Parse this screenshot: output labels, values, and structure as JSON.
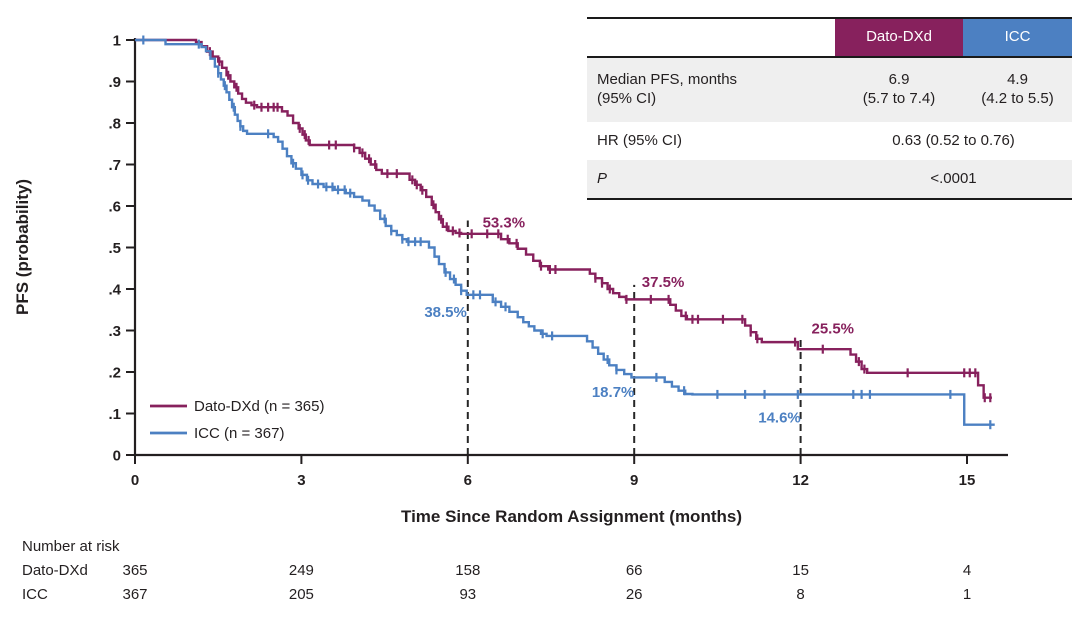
{
  "figure_title": "",
  "chart_data": {
    "type": "line",
    "subtype": "kaplan-meier-step",
    "title": "",
    "xlabel": "Time Since Random Assignment (months)",
    "ylabel": "PFS (probability)",
    "xlim": [
      0,
      15.6
    ],
    "ylim": [
      0,
      1
    ],
    "grid": false,
    "legend_position": "inside-lower-left",
    "xticks": {
      "values": [
        0,
        3,
        6,
        9,
        12,
        15
      ],
      "labels": [
        "0",
        "3",
        "6",
        "9",
        "12",
        "15"
      ]
    },
    "yticks": {
      "values": [
        1,
        0.9,
        0.8,
        0.7,
        0.6,
        0.5,
        0.4,
        0.3,
        0.2,
        0.1,
        0
      ],
      "labels": [
        "1",
        ".9",
        ".8",
        ".7",
        ".6",
        ".5",
        ".4",
        ".3",
        ".2",
        ".1",
        "0"
      ]
    },
    "milestone_dashed_lines": [
      {
        "t": 6,
        "top_p": 0.565
      },
      {
        "t": 9,
        "top_p": 0.41
      },
      {
        "t": 12,
        "top_p": 0.287
      }
    ],
    "annotations": [
      {
        "label": "53.3%",
        "t": 6.65,
        "p": 0.56,
        "series": "dato"
      },
      {
        "label": "38.5%",
        "t": 5.6,
        "p": 0.345,
        "series": "icc"
      },
      {
        "label": "37.5%",
        "t": 9.52,
        "p": 0.417,
        "series": "dato"
      },
      {
        "label": "18.7%",
        "t": 8.62,
        "p": 0.152,
        "series": "icc"
      },
      {
        "label": "25.5%",
        "t": 12.58,
        "p": 0.305,
        "series": "dato"
      },
      {
        "label": "14.6%",
        "t": 11.62,
        "p": 0.09,
        "series": "icc"
      }
    ],
    "series": [
      {
        "id": "dato",
        "name": "Dato-DXd (n = 365)",
        "color": "#87215D",
        "end_t": 15.45,
        "steps": [
          [
            0,
            1.0
          ],
          [
            1.1,
            0.995
          ],
          [
            1.2,
            0.985
          ],
          [
            1.3,
            0.972
          ],
          [
            1.4,
            0.96
          ],
          [
            1.5,
            0.948
          ],
          [
            1.57,
            0.933
          ],
          [
            1.65,
            0.915
          ],
          [
            1.72,
            0.9
          ],
          [
            1.79,
            0.886
          ],
          [
            1.86,
            0.871
          ],
          [
            1.93,
            0.858
          ],
          [
            2.0,
            0.849
          ],
          [
            2.1,
            0.843
          ],
          [
            2.2,
            0.838
          ],
          [
            2.65,
            0.828
          ],
          [
            2.75,
            0.818
          ],
          [
            2.85,
            0.8
          ],
          [
            2.95,
            0.787
          ],
          [
            3.02,
            0.772
          ],
          [
            3.08,
            0.758
          ],
          [
            3.15,
            0.747
          ],
          [
            3.95,
            0.74
          ],
          [
            4.05,
            0.728
          ],
          [
            4.15,
            0.714
          ],
          [
            4.25,
            0.7
          ],
          [
            4.35,
            0.687
          ],
          [
            4.45,
            0.678
          ],
          [
            4.95,
            0.663
          ],
          [
            5.05,
            0.651
          ],
          [
            5.15,
            0.638
          ],
          [
            5.25,
            0.622
          ],
          [
            5.35,
            0.603
          ],
          [
            5.42,
            0.585
          ],
          [
            5.48,
            0.568
          ],
          [
            5.55,
            0.55
          ],
          [
            5.65,
            0.54
          ],
          [
            5.78,
            0.535
          ],
          [
            5.88,
            0.533
          ],
          [
            6.6,
            0.52
          ],
          [
            6.75,
            0.51
          ],
          [
            6.9,
            0.497
          ],
          [
            7.05,
            0.483
          ],
          [
            7.18,
            0.468
          ],
          [
            7.3,
            0.455
          ],
          [
            7.45,
            0.447
          ],
          [
            8.2,
            0.437
          ],
          [
            8.3,
            0.426
          ],
          [
            8.42,
            0.414
          ],
          [
            8.52,
            0.4
          ],
          [
            8.62,
            0.39
          ],
          [
            8.73,
            0.381
          ],
          [
            8.85,
            0.375
          ],
          [
            9.65,
            0.362
          ],
          [
            9.75,
            0.348
          ],
          [
            9.85,
            0.335
          ],
          [
            9.95,
            0.327
          ],
          [
            11.0,
            0.312
          ],
          [
            11.1,
            0.296
          ],
          [
            11.2,
            0.28
          ],
          [
            11.3,
            0.272
          ],
          [
            11.95,
            0.255
          ],
          [
            12.9,
            0.242
          ],
          [
            13.0,
            0.225
          ],
          [
            13.1,
            0.207
          ],
          [
            13.2,
            0.198
          ],
          [
            15.2,
            0.168
          ],
          [
            15.3,
            0.138
          ]
        ],
        "censor_times": [
          1.35,
          1.52,
          1.68,
          1.83,
          2.15,
          2.28,
          2.4,
          2.5,
          2.57,
          2.97,
          3.06,
          3.13,
          3.5,
          3.62,
          3.95,
          4.1,
          4.22,
          4.33,
          4.55,
          4.72,
          5.0,
          5.08,
          5.18,
          5.38,
          5.52,
          5.62,
          5.73,
          5.85,
          6.07,
          6.35,
          6.55,
          6.72,
          6.88,
          7.32,
          7.48,
          7.58,
          8.3,
          8.42,
          8.56,
          8.86,
          9.3,
          9.62,
          9.93,
          10.05,
          10.15,
          10.6,
          10.95,
          11.1,
          11.22,
          11.9,
          12.4,
          13.05,
          13.15,
          13.93,
          14.95,
          15.05,
          15.15,
          15.32,
          15.42
        ]
      },
      {
        "id": "icc",
        "name": "ICC (n = 367)",
        "color": "#4C80C2",
        "end_t": 15.5,
        "steps": [
          [
            0,
            1.0
          ],
          [
            0.55,
            0.99
          ],
          [
            1.2,
            0.983
          ],
          [
            1.28,
            0.973
          ],
          [
            1.36,
            0.955
          ],
          [
            1.44,
            0.936
          ],
          [
            1.5,
            0.92
          ],
          [
            1.55,
            0.905
          ],
          [
            1.6,
            0.89
          ],
          [
            1.65,
            0.874
          ],
          [
            1.7,
            0.856
          ],
          [
            1.75,
            0.838
          ],
          [
            1.8,
            0.82
          ],
          [
            1.85,
            0.805
          ],
          [
            1.9,
            0.792
          ],
          [
            1.95,
            0.781
          ],
          [
            2.02,
            0.774
          ],
          [
            2.5,
            0.766
          ],
          [
            2.58,
            0.755
          ],
          [
            2.66,
            0.738
          ],
          [
            2.74,
            0.72
          ],
          [
            2.82,
            0.703
          ],
          [
            2.9,
            0.69
          ],
          [
            3.0,
            0.675
          ],
          [
            3.1,
            0.662
          ],
          [
            3.2,
            0.653
          ],
          [
            3.4,
            0.646
          ],
          [
            3.6,
            0.639
          ],
          [
            3.8,
            0.631
          ],
          [
            3.95,
            0.622
          ],
          [
            4.1,
            0.613
          ],
          [
            4.22,
            0.601
          ],
          [
            4.32,
            0.589
          ],
          [
            4.42,
            0.569
          ],
          [
            4.52,
            0.552
          ],
          [
            4.62,
            0.54
          ],
          [
            4.72,
            0.53
          ],
          [
            4.82,
            0.52
          ],
          [
            4.9,
            0.514
          ],
          [
            5.3,
            0.5
          ],
          [
            5.4,
            0.478
          ],
          [
            5.48,
            0.46
          ],
          [
            5.58,
            0.44
          ],
          [
            5.68,
            0.424
          ],
          [
            5.78,
            0.41
          ],
          [
            5.88,
            0.396
          ],
          [
            5.98,
            0.386
          ],
          [
            6.45,
            0.369
          ],
          [
            6.6,
            0.357
          ],
          [
            6.75,
            0.345
          ],
          [
            6.9,
            0.332
          ],
          [
            7.0,
            0.32
          ],
          [
            7.1,
            0.31
          ],
          [
            7.2,
            0.3
          ],
          [
            7.32,
            0.292
          ],
          [
            7.42,
            0.287
          ],
          [
            8.15,
            0.274
          ],
          [
            8.25,
            0.259
          ],
          [
            8.35,
            0.244
          ],
          [
            8.45,
            0.23
          ],
          [
            8.55,
            0.216
          ],
          [
            8.68,
            0.205
          ],
          [
            8.82,
            0.195
          ],
          [
            8.95,
            0.187
          ],
          [
            9.55,
            0.176
          ],
          [
            9.68,
            0.165
          ],
          [
            9.8,
            0.155
          ],
          [
            9.92,
            0.147
          ],
          [
            10.05,
            0.146
          ],
          [
            14.95,
            0.073
          ]
        ],
        "censor_times": [
          0.15,
          1.15,
          1.5,
          1.62,
          1.78,
          1.9,
          2.4,
          2.85,
          3.02,
          3.12,
          3.3,
          3.45,
          3.56,
          3.66,
          3.78,
          3.88,
          4.5,
          4.62,
          4.82,
          4.93,
          5.05,
          5.15,
          5.6,
          5.75,
          5.88,
          6.1,
          6.22,
          6.5,
          6.68,
          7.35,
          7.52,
          8.52,
          8.68,
          9.4,
          9.9,
          10.5,
          11.0,
          11.35,
          11.95,
          12.95,
          13.1,
          13.25,
          14.7,
          15.42
        ]
      }
    ]
  },
  "legend": {
    "entries": [
      {
        "label": "Dato-DXd (n = 365)",
        "color": "#87215D"
      },
      {
        "label": "ICC (n = 367)",
        "color": "#4C80C2"
      }
    ]
  },
  "stats_table": {
    "col_dato": "Dato-DXd",
    "col_icc": "ICC",
    "median": {
      "label1": "Median PFS, months",
      "label2": "(95% CI)",
      "dato1": "6.9",
      "dato2": "(5.7 to 7.4)",
      "icc1": "4.9",
      "icc2": "(4.2 to 5.5)"
    },
    "hr": {
      "label": "HR (95% CI)",
      "value": "0.63 (0.52 to 0.76)"
    },
    "p": {
      "label": "P",
      "value": "<.0001"
    }
  },
  "risk_table": {
    "title": "Number at risk",
    "times": [
      0,
      3,
      6,
      9,
      12,
      15
    ],
    "rows": [
      {
        "label": "Dato-DXd",
        "values": [
          "365",
          "249",
          "158",
          "66",
          "15",
          "4"
        ]
      },
      {
        "label": "ICC",
        "values": [
          "367",
          "205",
          "93",
          "26",
          "8",
          "1"
        ]
      }
    ]
  },
  "colors": {
    "dato": "#87215D",
    "icc": "#4C80C2",
    "axis": "#231f20",
    "dashed_line": "#262626",
    "row_shade": "#efefef",
    "header_text": "#ffffff"
  }
}
